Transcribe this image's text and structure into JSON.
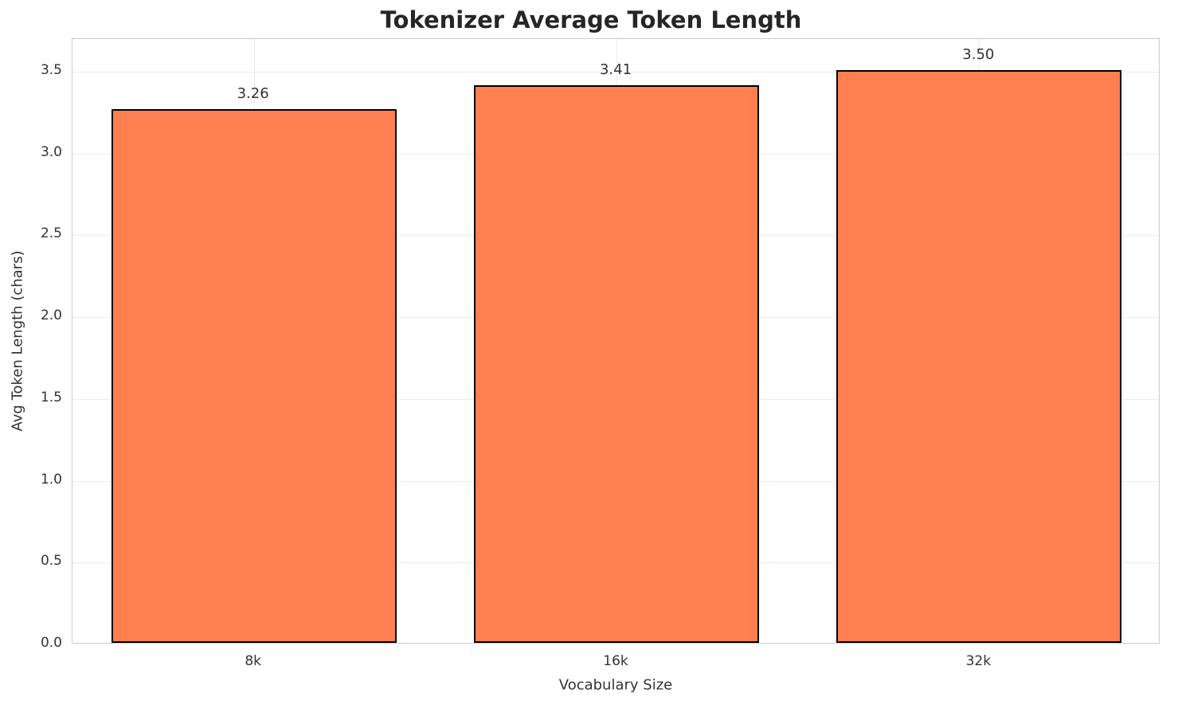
{
  "chart_data": {
    "type": "bar",
    "title": "Tokenizer Average Token Length",
    "xlabel": "Vocabulary Size",
    "ylabel": "Avg Token Length (chars)",
    "categories": [
      "8k",
      "16k",
      "32k"
    ],
    "values": [
      3.26,
      3.41,
      3.5
    ],
    "value_labels": [
      "3.26",
      "3.41",
      "3.50"
    ],
    "yticks": [
      0.0,
      0.5,
      1.0,
      1.5,
      2.0,
      2.5,
      3.0,
      3.5
    ],
    "ytick_labels": [
      "0.0",
      "0.5",
      "1.0",
      "1.5",
      "2.0",
      "2.5",
      "3.0",
      "3.5"
    ],
    "ylim": [
      0,
      3.7
    ],
    "grid": true,
    "legend": false,
    "bar_color": "#FF7F50",
    "bar_edge_color": "#000000"
  }
}
